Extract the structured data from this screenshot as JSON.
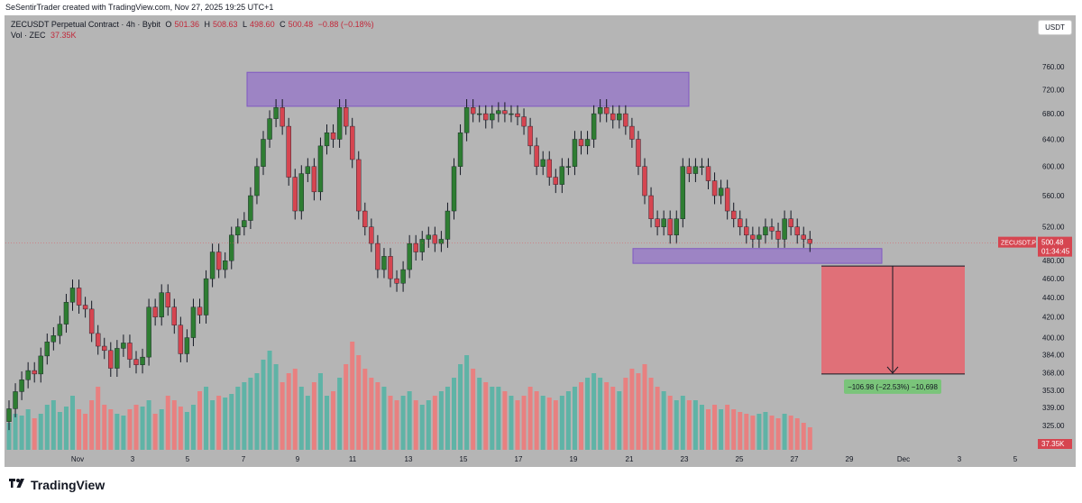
{
  "header": {
    "created_by": "SeSentirTrader created with TradingView.com, Nov 27, 2025 19:25 UTC+1"
  },
  "legend": {
    "symbol": "ZECUSDT Perpetual Contract · 4h · Bybit",
    "o_label": "O",
    "o": "501.36",
    "h_label": "H",
    "h": "508.63",
    "l_label": "L",
    "l": "498.60",
    "c_label": "C",
    "c": "500.48",
    "change": "−0.88 (−0.18%)",
    "vol_label": "Vol · ZEC",
    "vol": "37.35K"
  },
  "currency_button": "USDT",
  "price_tag": {
    "symbol": "ZECUSDT.P",
    "price": "500.48",
    "countdown": "01:34:45"
  },
  "volume_tag": "37.35K",
  "measure_label": "−106.98 (−22.53%) −10,698",
  "brand": "TradingView",
  "colors": {
    "background": "#b5b5b5",
    "up": "#2e7d32",
    "down": "#d64550",
    "vol_up": "#5fb3a6",
    "vol_down": "#e88080",
    "zone": "#9b7fc6",
    "zone_border": "#7b4fc4",
    "measure": "#e07078",
    "label_bg": "#7ac47a"
  },
  "chart_data": {
    "type": "candlestick",
    "timeframe": "4h",
    "y_axis_ticks": [
      325,
      339,
      353,
      368,
      384,
      400,
      420,
      440,
      460,
      480,
      520,
      560,
      600,
      640,
      680,
      720,
      760
    ],
    "y_scale": "log",
    "ylim": [
      318,
      800
    ],
    "x_tick_labels": [
      "Nov",
      "3",
      "5",
      "7",
      "9",
      "11",
      "13",
      "15",
      "17",
      "19",
      "21",
      "23",
      "25",
      "27",
      "29",
      "Dec",
      "3",
      "5"
    ],
    "x_tick_dates": [
      "2025-11-01",
      "2025-11-03",
      "2025-11-05",
      "2025-11-07",
      "2025-11-09",
      "2025-11-11",
      "2025-11-13",
      "2025-11-15",
      "2025-11-17",
      "2025-11-19",
      "2025-11-21",
      "2025-11-23",
      "2025-11-25",
      "2025-11-27",
      "2025-11-29",
      "2025-12-01",
      "2025-12-03",
      "2025-12-05"
    ],
    "closes": [
      338,
      352,
      362,
      370,
      367,
      383,
      396,
      402,
      413,
      435,
      450,
      432,
      428,
      404,
      392,
      388,
      372,
      390,
      395,
      380,
      375,
      382,
      430,
      420,
      445,
      430,
      412,
      385,
      400,
      430,
      422,
      460,
      490,
      470,
      480,
      510,
      520,
      528,
      560,
      600,
      640,
      672,
      690,
      660,
      585,
      540,
      590,
      600,
      565,
      630,
      650,
      640,
      690,
      660,
      610,
      540,
      520,
      500,
      470,
      485,
      460,
      455,
      470,
      500,
      490,
      505,
      510,
      500,
      505,
      540,
      600,
      650,
      690,
      680,
      680,
      670,
      680,
      685,
      680,
      680,
      675,
      660,
      630,
      600,
      610,
      585,
      575,
      600,
      600,
      640,
      630,
      640,
      680,
      690,
      680,
      670,
      680,
      660,
      640,
      600,
      560,
      530,
      520,
      530,
      510,
      530,
      600,
      590,
      600,
      600,
      580,
      560,
      570,
      540,
      530,
      520,
      510,
      505,
      510,
      520,
      515,
      505,
      530,
      520,
      510,
      505,
      500
    ],
    "volume": [
      30,
      40,
      38,
      45,
      35,
      40,
      50,
      55,
      42,
      48,
      60,
      45,
      40,
      55,
      70,
      50,
      45,
      40,
      38,
      45,
      50,
      48,
      55,
      40,
      45,
      60,
      55,
      48,
      42,
      50,
      65,
      70,
      55,
      60,
      58,
      62,
      70,
      75,
      80,
      85,
      100,
      110,
      95,
      75,
      85,
      90,
      70,
      60,
      75,
      85,
      60,
      65,
      80,
      95,
      120,
      105,
      90,
      80,
      75,
      70,
      60,
      55,
      60,
      65,
      55,
      50,
      55,
      60,
      65,
      70,
      80,
      95,
      105,
      90,
      80,
      75,
      70,
      70,
      65,
      60,
      55,
      60,
      70,
      65,
      60,
      58,
      55,
      60,
      65,
      70,
      75,
      80,
      85,
      80,
      75,
      70,
      65,
      80,
      90,
      85,
      95,
      80,
      70,
      65,
      60,
      55,
      60,
      55,
      55,
      50,
      45,
      50,
      45,
      50,
      45,
      42,
      40,
      38,
      40,
      42,
      38,
      35,
      40,
      38,
      35,
      30,
      25
    ],
    "volume_max_label": "37.35K",
    "resistance_zone": [
      692,
      750
    ],
    "support_zone": [
      477,
      494
    ],
    "measure": {
      "from": 474,
      "to": 367,
      "change": -106.98,
      "change_pct": -22.53
    },
    "last_price": 500.48
  }
}
